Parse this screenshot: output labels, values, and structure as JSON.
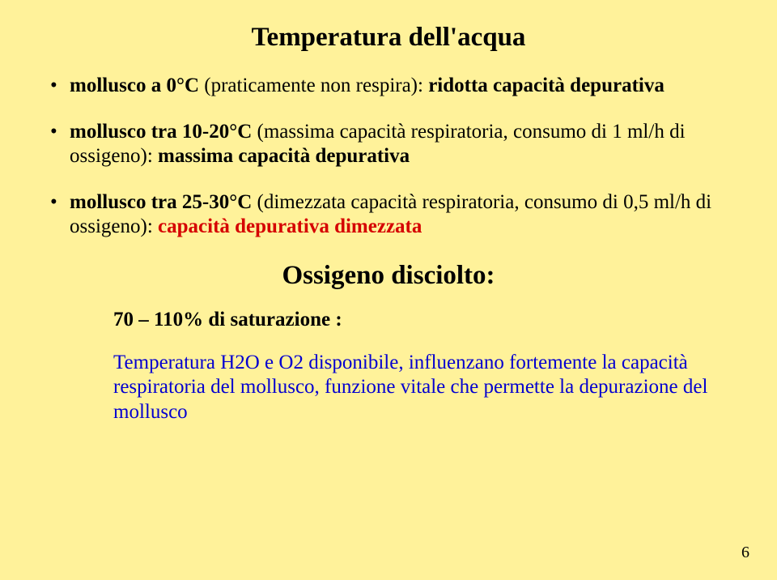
{
  "title": "Temperatura dell'acqua",
  "bullets": [
    {
      "lead": "mollusco a 0°C ",
      "desc": "(praticamente non respira): ",
      "tail": "ridotta capacità depurativa"
    },
    {
      "lead": "mollusco tra 10-20°C ",
      "desc": "(massima capacità respiratoria, consumo di 1 ml/h di ossigeno): ",
      "tail": "massima capacità depurativa"
    },
    {
      "lead": "mollusco tra 25-30°C ",
      "desc": "(dimezzata capacità respiratoria, consumo di 0,5 ml/h di ossigeno): ",
      "tail": "capacità depurativa dimezzata"
    }
  ],
  "subtitle": "Ossigeno disciolto:",
  "saturation": "70 – 110% di saturazione :",
  "paragraph": "Temperatura H2O e O2 disponibile, influenzano fortemente la capacità respiratoria del mollusco, funzione vitale che permette la depurazione del mollusco",
  "pagenum": "6"
}
